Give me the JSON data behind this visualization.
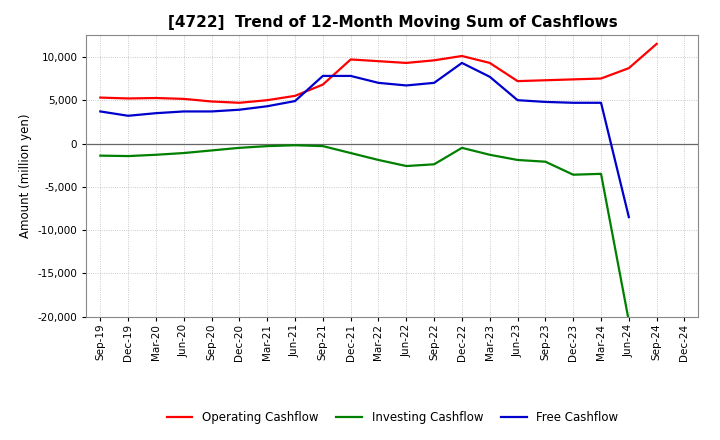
{
  "title": "[4722]  Trend of 12-Month Moving Sum of Cashflows",
  "ylabel": "Amount (million yen)",
  "ylim": [
    -20000,
    12500
  ],
  "yticks": [
    -20000,
    -15000,
    -10000,
    -5000,
    0,
    5000,
    10000
  ],
  "background_color": "#ffffff",
  "grid_color": "#bbbbbb",
  "x_labels": [
    "Sep-19",
    "Dec-19",
    "Mar-20",
    "Jun-20",
    "Sep-20",
    "Dec-20",
    "Mar-21",
    "Jun-21",
    "Sep-21",
    "Dec-21",
    "Mar-22",
    "Jun-22",
    "Sep-22",
    "Dec-22",
    "Mar-23",
    "Jun-23",
    "Sep-23",
    "Dec-23",
    "Mar-24",
    "Jun-24",
    "Sep-24",
    "Dec-24"
  ],
  "operating_cashflow": [
    5300,
    5200,
    5250,
    5150,
    4850,
    4700,
    5000,
    5500,
    6800,
    9700,
    9500,
    9300,
    9600,
    10100,
    9300,
    7200,
    7300,
    7400,
    7500,
    8700,
    11500,
    null
  ],
  "investing_cashflow": [
    -1400,
    -1450,
    -1300,
    -1100,
    -800,
    -500,
    -300,
    -200,
    -300,
    -1100,
    -1900,
    -2600,
    -2400,
    -500,
    -1300,
    -1900,
    -2100,
    -3600,
    -3500,
    -20500,
    null,
    null
  ],
  "free_cashflow": [
    3700,
    3200,
    3500,
    3700,
    3700,
    3900,
    4300,
    4900,
    7800,
    7800,
    7000,
    6700,
    7000,
    9300,
    7700,
    5000,
    4800,
    4700,
    4700,
    -8500,
    null,
    null
  ],
  "operating_color": "#ff0000",
  "investing_color": "#008000",
  "free_color": "#0000cc",
  "line_width": 1.6,
  "title_fontsize": 11,
  "tick_fontsize": 7.5,
  "ylabel_fontsize": 8.5
}
